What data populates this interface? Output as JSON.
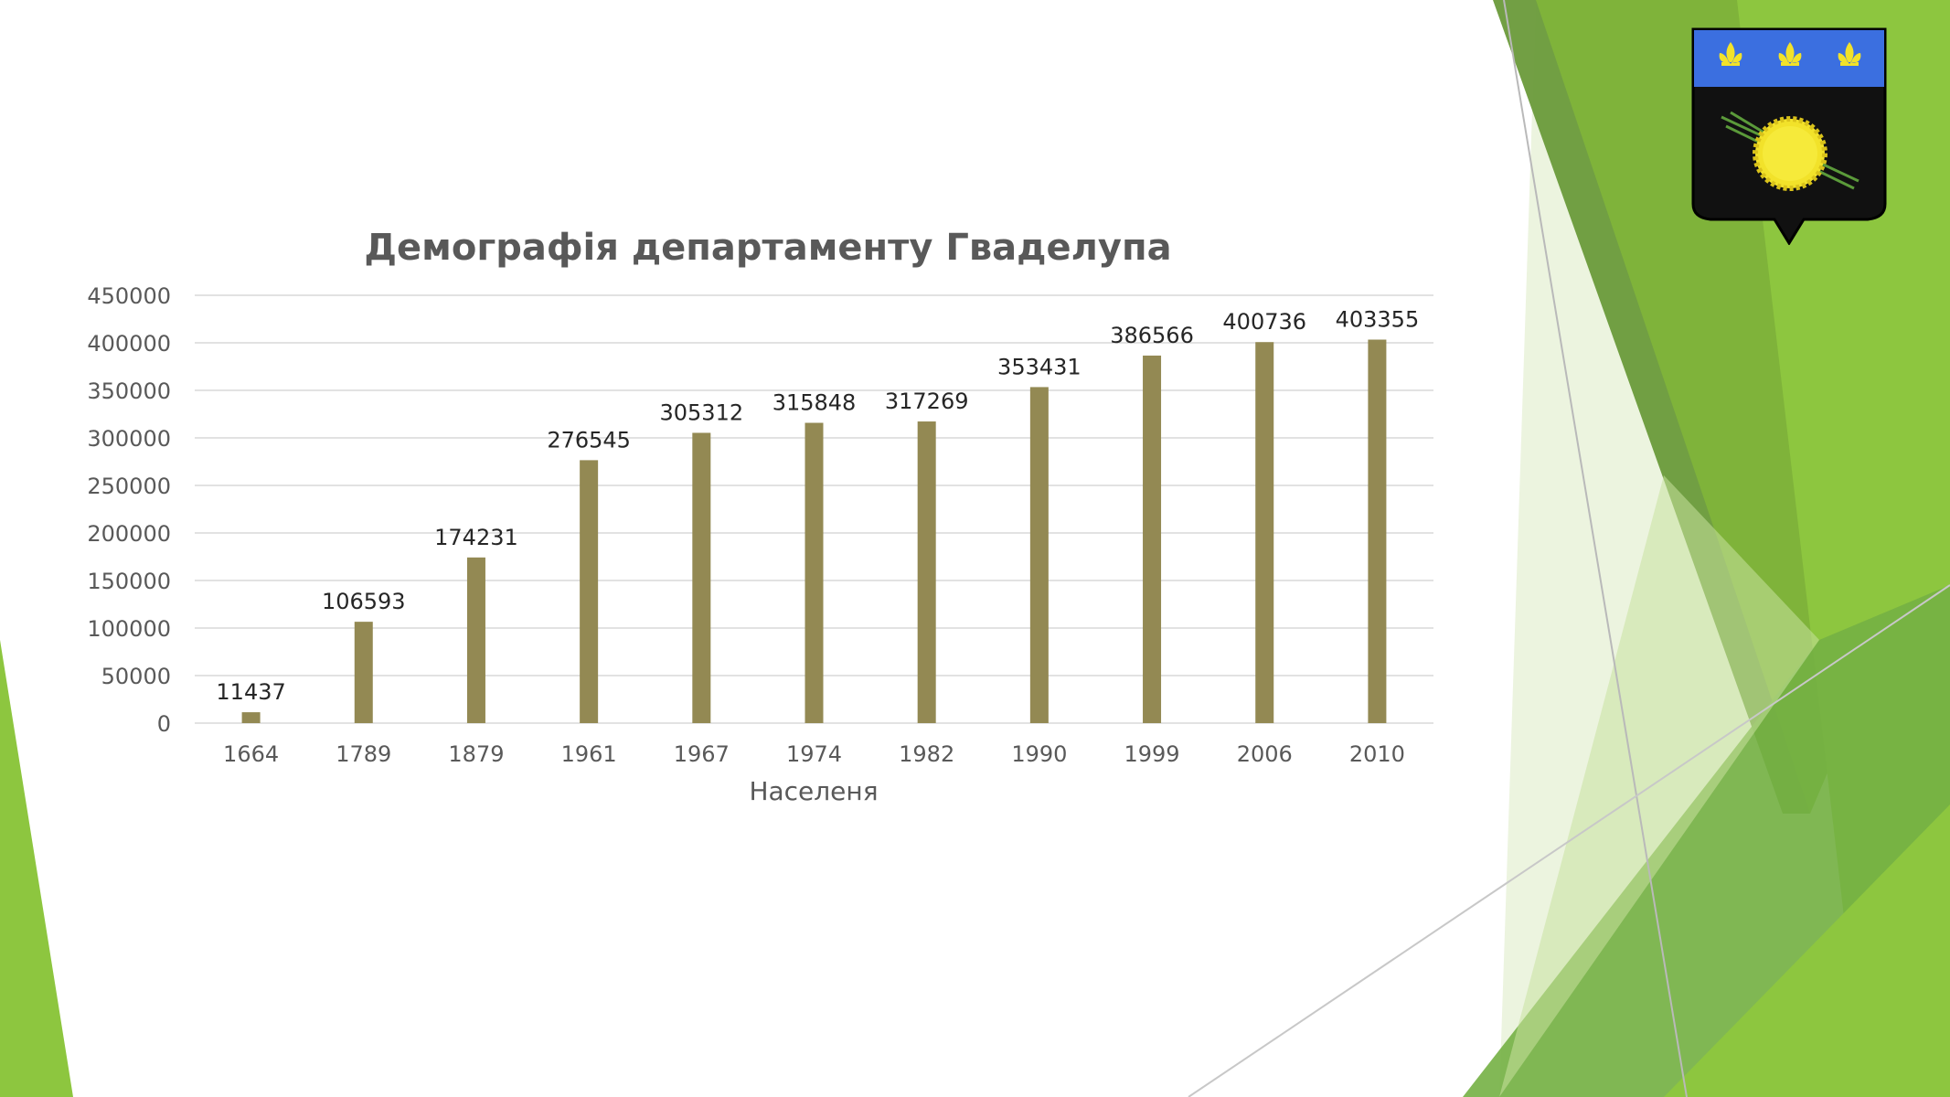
{
  "slide": {
    "accent_colors": [
      "#8dc63f",
      "#6a9a3a",
      "#4e8a23",
      "#dcebc4"
    ]
  },
  "emblem": {
    "icon": "guadeloupe-coat-of-arms-icon",
    "colors": {
      "chief": "#3b6fe0",
      "field": "#111111",
      "sun": "#f2e22a",
      "fleur": "#f2e22a",
      "cane": "#5b9a3a"
    }
  },
  "chart_data": {
    "type": "bar",
    "title": "Демографія департаменту Гваделупа",
    "xlabel": "Населеня",
    "ylabel": "",
    "categories": [
      "1664",
      "1789",
      "1879",
      "1961",
      "1967",
      "1974",
      "1982",
      "1990",
      "1999",
      "2006",
      "2010"
    ],
    "values": [
      11437,
      106593,
      174231,
      276545,
      305312,
      315848,
      317269,
      353431,
      386566,
      400736,
      403355
    ],
    "ylim": [
      0,
      450000
    ],
    "yticks": [
      0,
      50000,
      100000,
      150000,
      200000,
      250000,
      300000,
      350000,
      400000,
      450000
    ],
    "grid": true,
    "legend": "none",
    "bar_color": "#938953"
  }
}
